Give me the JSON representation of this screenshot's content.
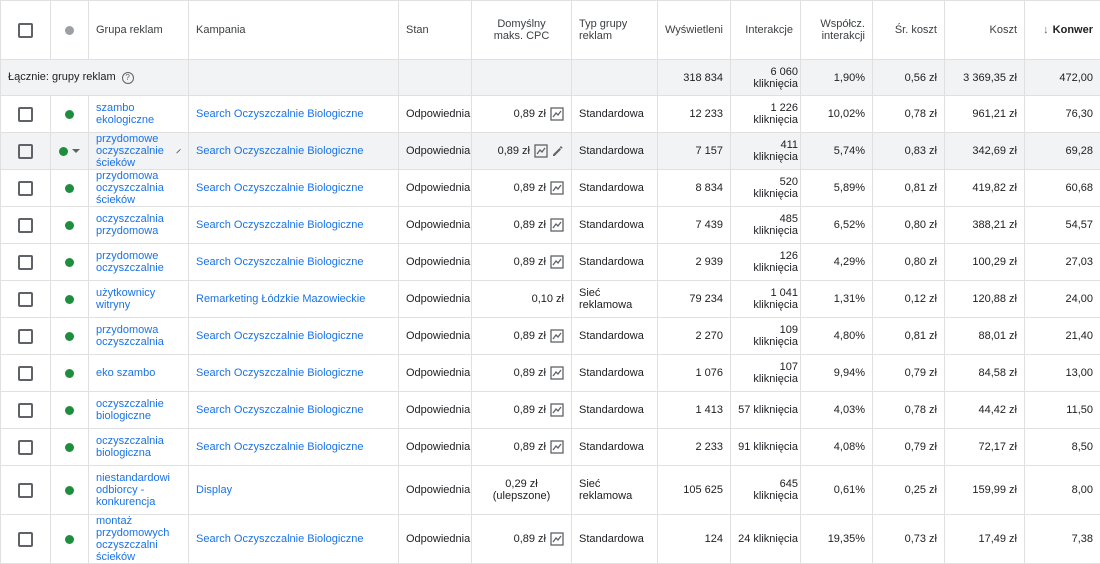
{
  "colors": {
    "accent": "#1a73e8",
    "status_enabled": "#1e8e3e",
    "status_header": "#9aa0a6"
  },
  "columns": {
    "ad_group": "Grupa reklam",
    "campaign": "Kampania",
    "status": "Stan",
    "max_cpc": "Domyślny maks. CPC",
    "type": "Typ grupy reklam",
    "impressions": "Wyświetleni",
    "interactions": "Interakcje",
    "interaction_rate": "Współcz. interakcji",
    "avg_cost": "Śr. koszt",
    "cost": "Koszt",
    "conversions": "Konwer"
  },
  "total": {
    "label": "Łącznie: grupy reklam",
    "impressions": "318 834",
    "interactions": "6 060 kliknięcia",
    "interaction_rate": "1,90%",
    "avg_cost": "0,56 zł",
    "cost": "3 369,35 zł",
    "conversions": "472,00"
  },
  "rows": [
    {
      "ad_group": "szambo ekologiczne",
      "campaign": "Search Oczyszczalnie Biologiczne",
      "status": "Odpowiednia",
      "max_cpc": "0,89 zł",
      "type": "Standardowa",
      "impressions": "12 233",
      "interactions": "1 226 kliknięcia",
      "interaction_rate": "10,02%",
      "avg_cost": "0,78 zł",
      "cost": "961,21 zł",
      "conversions": "76,30"
    },
    {
      "ad_group": "przydomowe oczyszczalnie ścieków",
      "campaign": "Search Oczyszczalnie Biologiczne",
      "status": "Odpowiednia",
      "max_cpc": "0,89 zł",
      "type": "Standardowa",
      "impressions": "7 157",
      "interactions": "411 kliknięcia",
      "interaction_rate": "5,74%",
      "avg_cost": "0,83 zł",
      "cost": "342,69 zł",
      "conversions": "69,28"
    },
    {
      "ad_group": "przydomowa oczyszczalnia ścieków",
      "campaign": "Search Oczyszczalnie Biologiczne",
      "status": "Odpowiednia",
      "max_cpc": "0,89 zł",
      "type": "Standardowa",
      "impressions": "8 834",
      "interactions": "520 kliknięcia",
      "interaction_rate": "5,89%",
      "avg_cost": "0,81 zł",
      "cost": "419,82 zł",
      "conversions": "60,68"
    },
    {
      "ad_group": "oczyszczalnia przydomowa",
      "campaign": "Search Oczyszczalnie Biologiczne",
      "status": "Odpowiednia",
      "max_cpc": "0,89 zł",
      "type": "Standardowa",
      "impressions": "7 439",
      "interactions": "485 kliknięcia",
      "interaction_rate": "6,52%",
      "avg_cost": "0,80 zł",
      "cost": "388,21 zł",
      "conversions": "54,57"
    },
    {
      "ad_group": "przydomowe oczyszczalnie",
      "campaign": "Search Oczyszczalnie Biologiczne",
      "status": "Odpowiednia",
      "max_cpc": "0,89 zł",
      "type": "Standardowa",
      "impressions": "2 939",
      "interactions": "126 kliknięcia",
      "interaction_rate": "4,29%",
      "avg_cost": "0,80 zł",
      "cost": "100,29 zł",
      "conversions": "27,03"
    },
    {
      "ad_group": "użytkownicy witryny",
      "campaign": "Remarketing Łódzkie Mazowieckie",
      "status": "Odpowiednia",
      "max_cpc": "0,10 zł",
      "type": "Sieć reklamowa",
      "impressions": "79 234",
      "interactions": "1 041 kliknięcia",
      "interaction_rate": "1,31%",
      "avg_cost": "0,12 zł",
      "cost": "120,88 zł",
      "conversions": "24,00"
    },
    {
      "ad_group": "przydomowa oczyszczalnia",
      "campaign": "Search Oczyszczalnie Biologiczne",
      "status": "Odpowiednia",
      "max_cpc": "0,89 zł",
      "type": "Standardowa",
      "impressions": "2 270",
      "interactions": "109 kliknięcia",
      "interaction_rate": "4,80%",
      "avg_cost": "0,81 zł",
      "cost": "88,01 zł",
      "conversions": "21,40"
    },
    {
      "ad_group": "eko szambo",
      "campaign": "Search Oczyszczalnie Biologiczne",
      "status": "Odpowiednia",
      "max_cpc": "0,89 zł",
      "type": "Standardowa",
      "impressions": "1 076",
      "interactions": "107 kliknięcia",
      "interaction_rate": "9,94%",
      "avg_cost": "0,79 zł",
      "cost": "84,58 zł",
      "conversions": "13,00"
    },
    {
      "ad_group": "oczyszczalnie biologiczne",
      "campaign": "Search Oczyszczalnie Biologiczne",
      "status": "Odpowiednia",
      "max_cpc": "0,89 zł",
      "type": "Standardowa",
      "impressions": "1 413",
      "interactions": "57 kliknięcia",
      "interaction_rate": "4,03%",
      "avg_cost": "0,78 zł",
      "cost": "44,42 zł",
      "conversions": "11,50"
    },
    {
      "ad_group": "oczyszczalnia biologiczna",
      "campaign": "Search Oczyszczalnie Biologiczne",
      "status": "Odpowiednia",
      "max_cpc": "0,89 zł",
      "type": "Standardowa",
      "impressions": "2 233",
      "interactions": "91 kliknięcia",
      "interaction_rate": "4,08%",
      "avg_cost": "0,79 zł",
      "cost": "72,17 zł",
      "conversions": "8,50"
    },
    {
      "ad_group": "niestandardowi odbiorcy - konkurencja",
      "campaign": "Display",
      "status": "Odpowiednia",
      "max_cpc": "0,29 zł (ulepszone)",
      "type": "Sieć reklamowa",
      "impressions": "105 625",
      "interactions": "645 kliknięcia",
      "interaction_rate": "0,61%",
      "avg_cost": "0,25 zł",
      "cost": "159,99 zł",
      "conversions": "8,00"
    },
    {
      "ad_group": "montaż przydomowych oczyszczalni ścieków",
      "campaign": "Search Oczyszczalnie Biologiczne",
      "status": "Odpowiednia",
      "max_cpc": "0,89 zł",
      "type": "Standardowa",
      "impressions": "124",
      "interactions": "24 kliknięcia",
      "interaction_rate": "19,35%",
      "avg_cost": "0,73 zł",
      "cost": "17,49 zł",
      "conversions": "7,38"
    }
  ]
}
